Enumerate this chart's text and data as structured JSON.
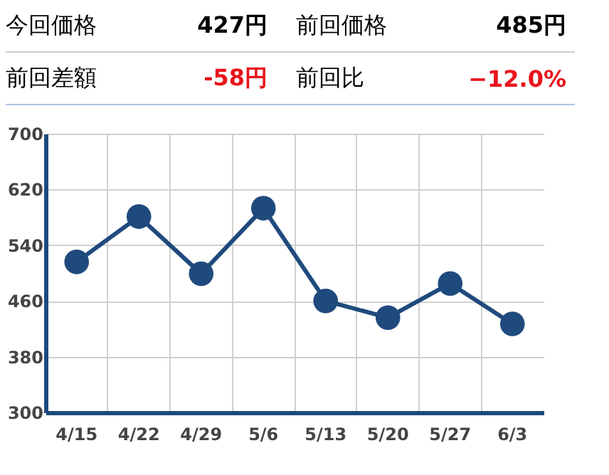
{
  "chart_data": {
    "type": "line",
    "annotations": [
      "今回価格",
      "427円",
      "前回価格",
      "485円",
      "前回差額",
      "-58円",
      "前回比",
      "−12.0%"
    ],
    "categories": [
      "4/15",
      "4/22",
      "4/29",
      "5/6",
      "5/13",
      "5/20",
      "5/27",
      "6/3"
    ],
    "series": [
      {
        "color": "#1f4a7d",
        "values": [
          516,
          581,
          499,
          593,
          460,
          436,
          485,
          427
        ]
      }
    ],
    "ylim": [
      300,
      700
    ],
    "yticks": [
      300,
      380,
      460,
      540,
      620,
      700
    ],
    "grid": true,
    "marker": "circle",
    "line_style": "solid"
  }
}
